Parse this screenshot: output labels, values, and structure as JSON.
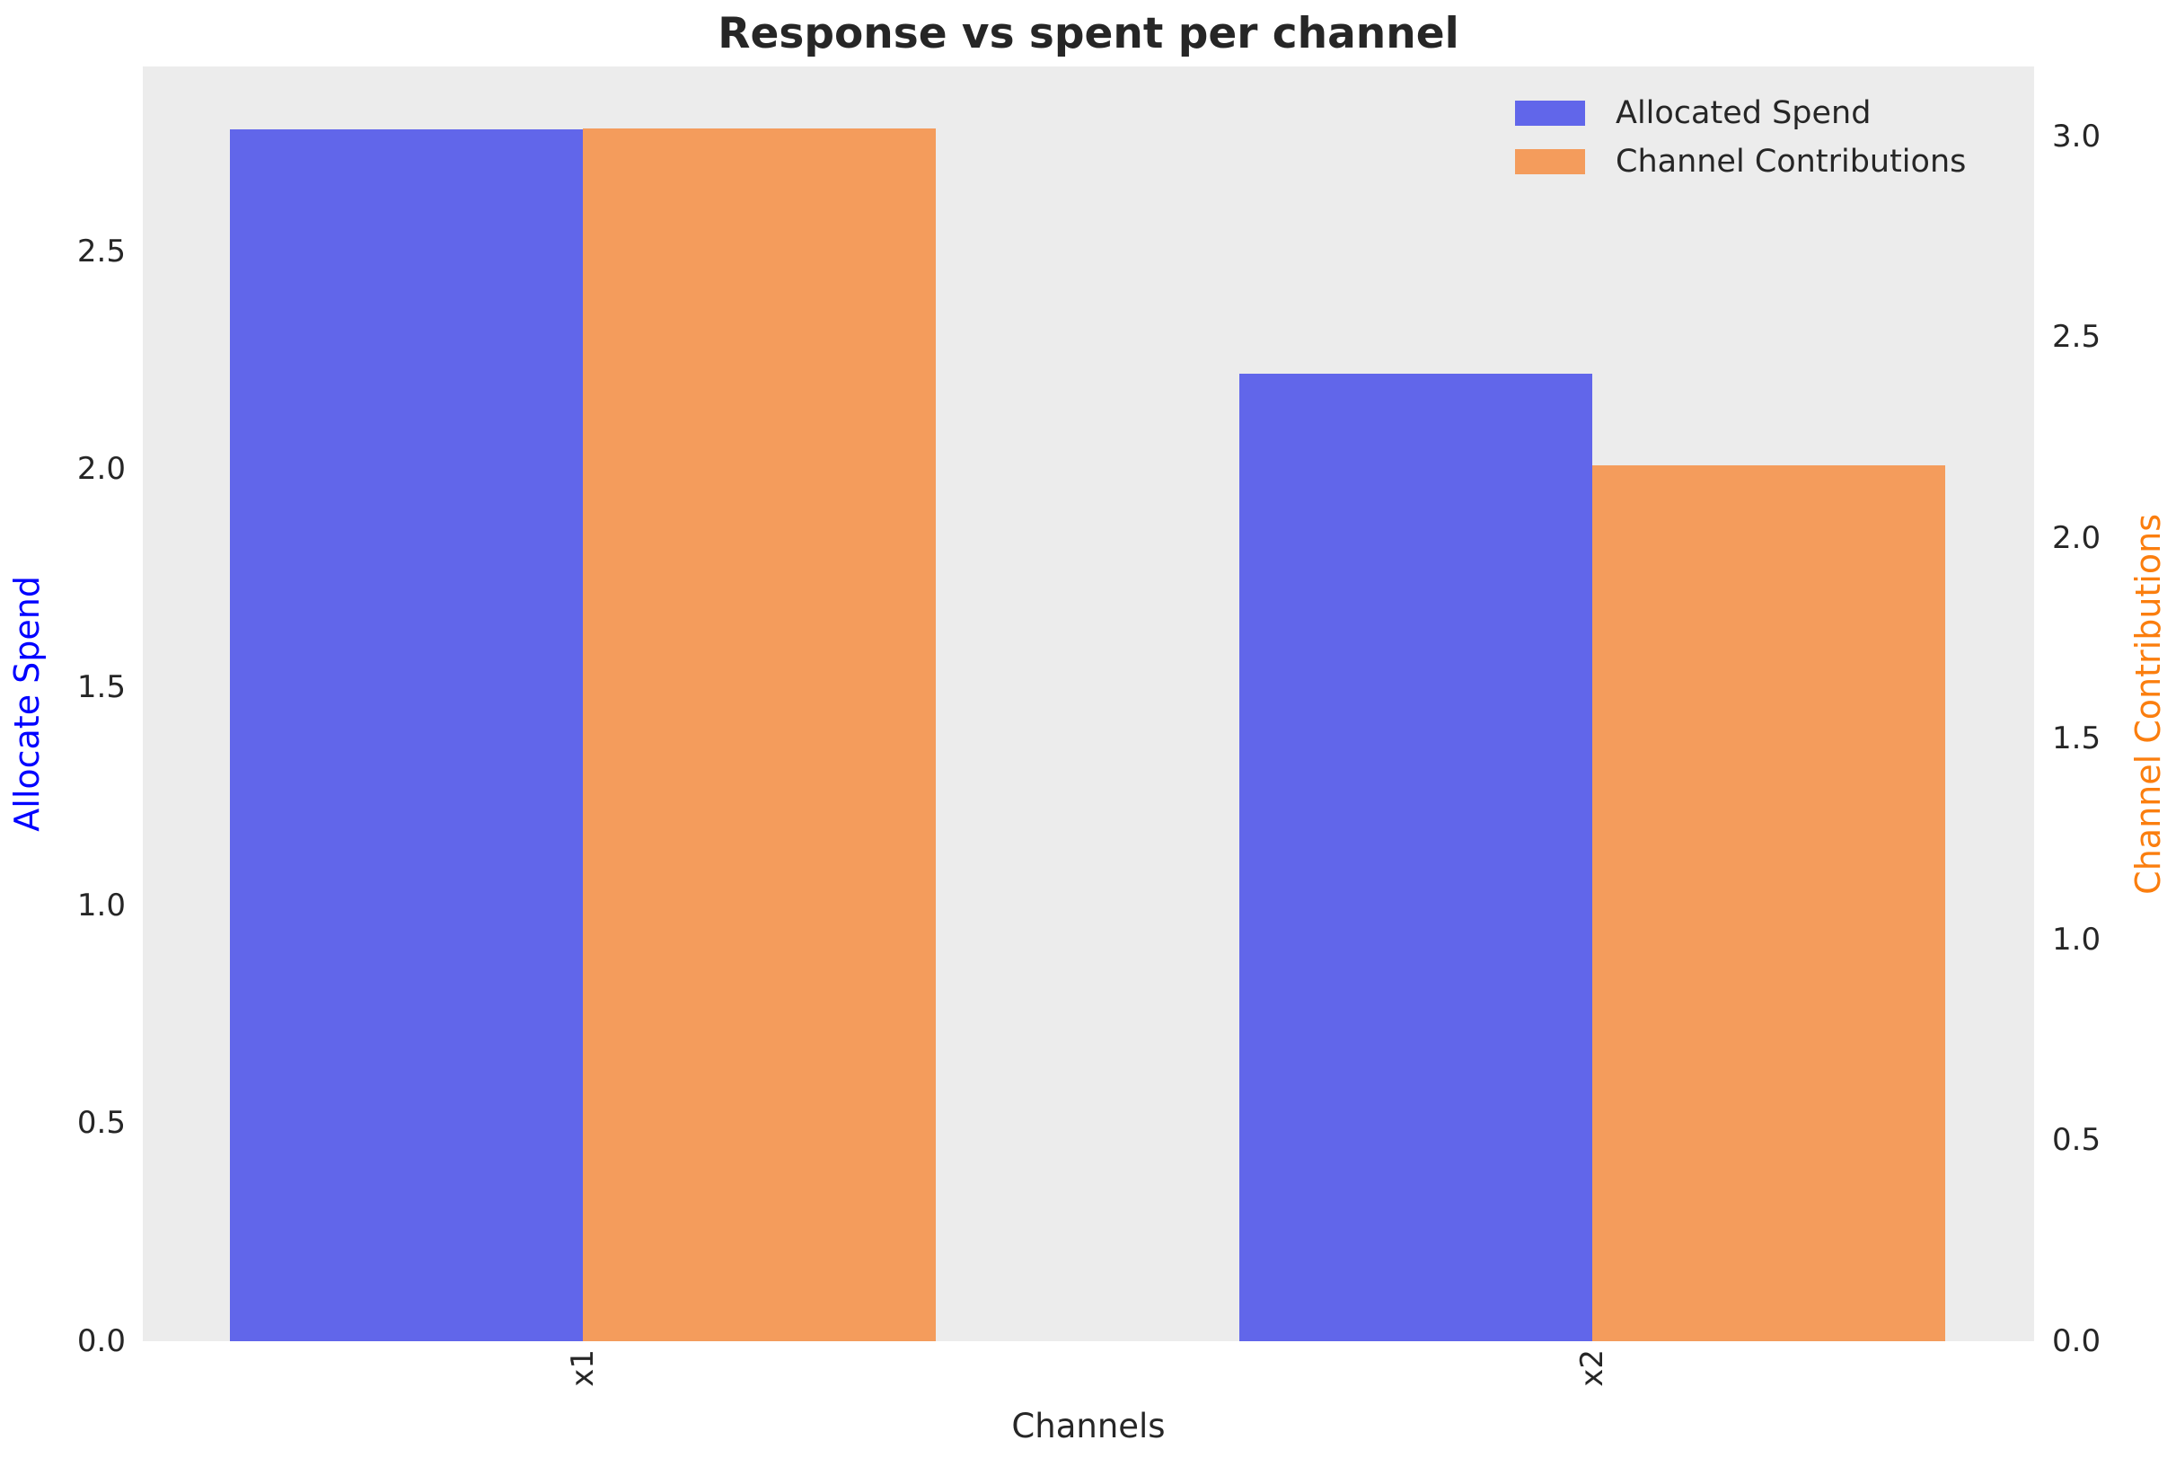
{
  "chart_data": {
    "type": "bar",
    "title": "Response vs spent per channel",
    "xlabel": "Channels",
    "ylabel_left": "Allocate Spend",
    "ylabel_right": "Channel Contributions",
    "categories": [
      "x1",
      "x2"
    ],
    "series": [
      {
        "name": "Allocated Spend",
        "axis": "left",
        "color": "#6166EA",
        "values": [
          2.78,
          2.22
        ]
      },
      {
        "name": "Channel Contributions",
        "axis": "right",
        "color": "#F49C5C",
        "values": [
          3.02,
          2.18
        ]
      }
    ],
    "left_axis": {
      "ticks": [
        0.0,
        0.5,
        1.0,
        1.5,
        2.0,
        2.5
      ],
      "max": 2.924,
      "tick_format": 1,
      "label_color": "#0000FF"
    },
    "right_axis": {
      "ticks": [
        0.0,
        0.5,
        1.0,
        1.5,
        2.0,
        2.5,
        3.0
      ],
      "max": 3.174,
      "tick_format": 1,
      "label_color": "#FB7E0E"
    },
    "legend": {
      "position": "upper right",
      "entries": [
        "Allocated Spend",
        "Channel Contributions"
      ]
    },
    "grid": false,
    "plot_bg": "#ECECEC",
    "figure_bg": "#FFFFFF"
  }
}
